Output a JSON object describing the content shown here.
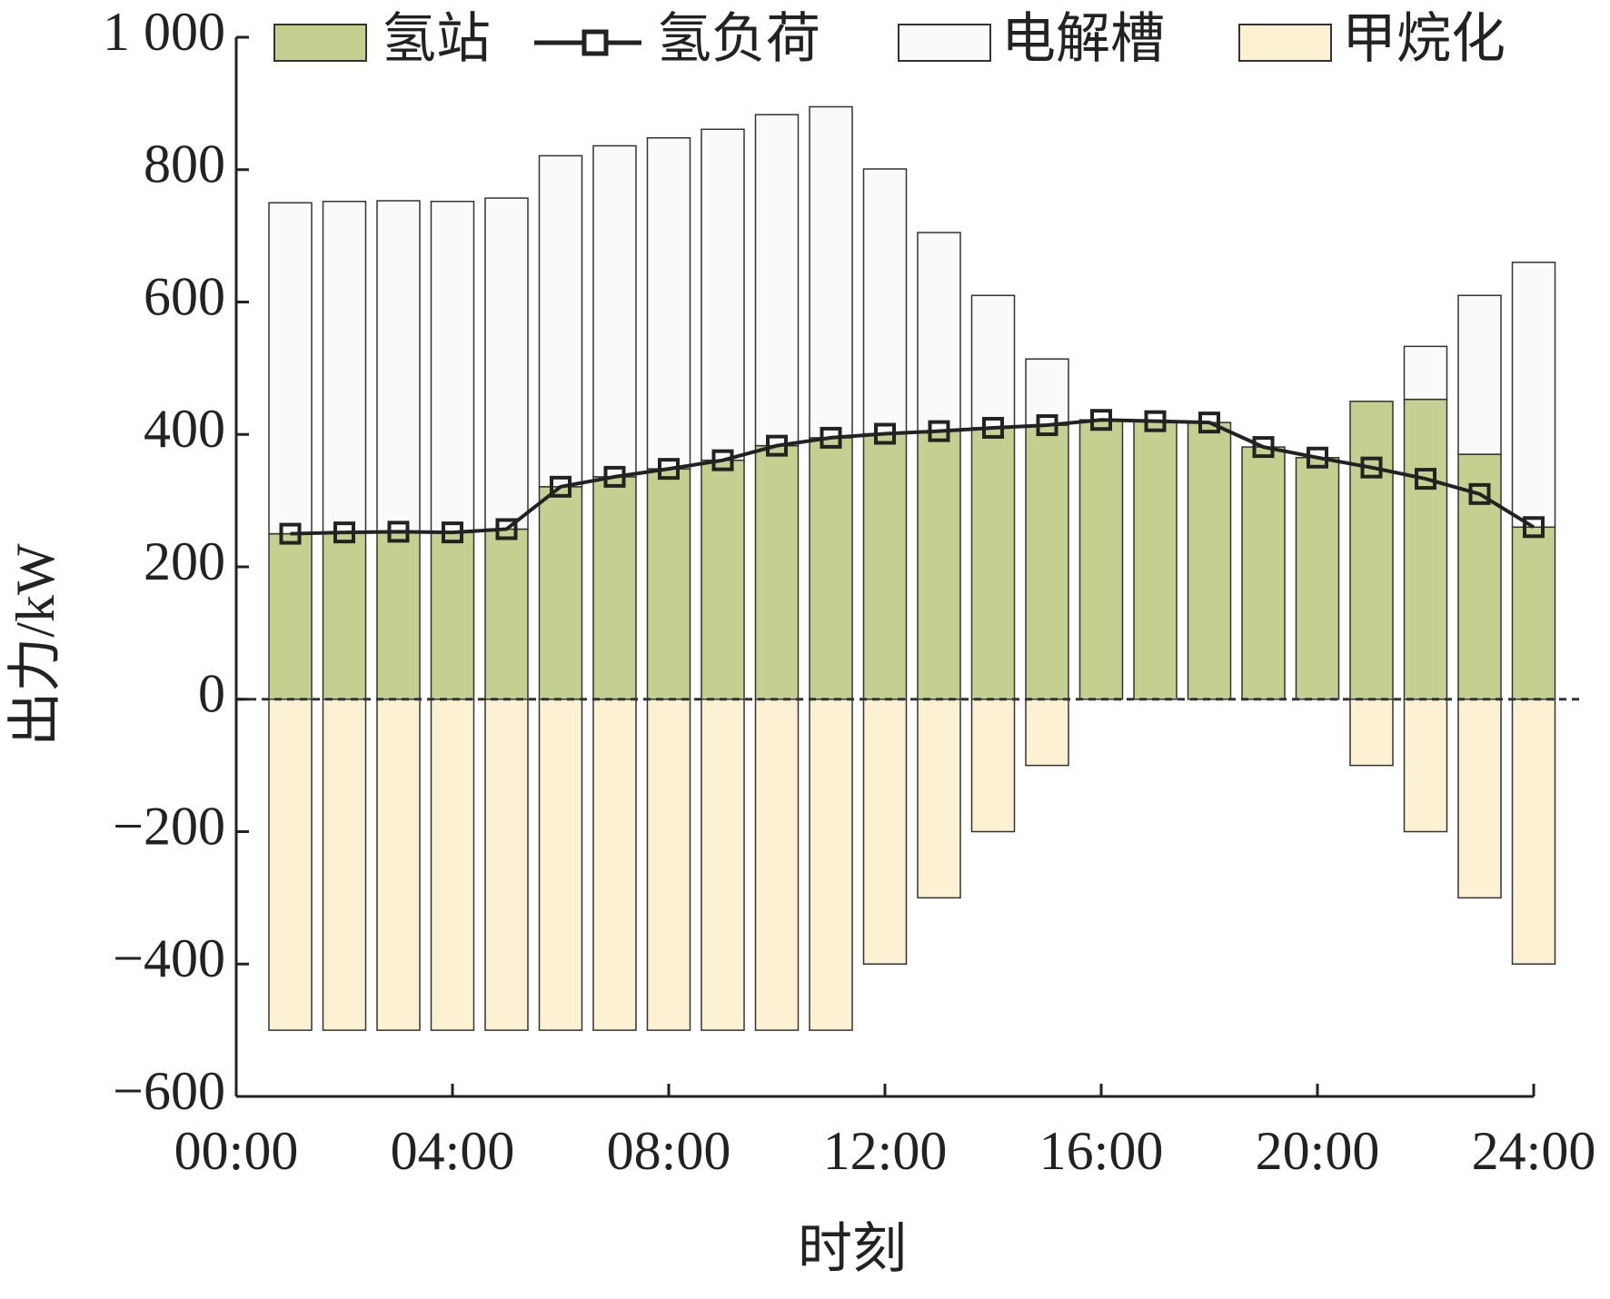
{
  "chart_data": {
    "type": "bar",
    "x_label": "时刻",
    "y_label": "出力/kW",
    "x": [
      1,
      2,
      3,
      4,
      5,
      6,
      7,
      8,
      9,
      10,
      11,
      12,
      13,
      14,
      15,
      16,
      17,
      18,
      19,
      20,
      21,
      22,
      23,
      24
    ],
    "xlim": [
      0,
      24
    ],
    "xticks": [
      {
        "value": 0,
        "label": "00:00"
      },
      {
        "value": 4,
        "label": "04:00"
      },
      {
        "value": 8,
        "label": "08:00"
      },
      {
        "value": 12,
        "label": "12:00"
      },
      {
        "value": 16,
        "label": "16:00"
      },
      {
        "value": 20,
        "label": "20:00"
      },
      {
        "value": 24,
        "label": "24:00"
      }
    ],
    "ylim": [
      -600,
      1000
    ],
    "yticks": [
      {
        "value": -600,
        "label": "−600"
      },
      {
        "value": -400,
        "label": "−400"
      },
      {
        "value": -200,
        "label": "−200"
      },
      0,
      200,
      400,
      600,
      800,
      {
        "value": 1000,
        "label": "1 000"
      }
    ],
    "series": [
      {
        "name": "氢站",
        "kind": "bar",
        "color": "#c3d08f",
        "values": [
          250,
          252,
          253,
          252,
          257,
          321,
          336,
          348,
          361,
          383,
          395,
          401,
          405,
          410,
          414,
          422,
          420,
          418,
          381,
          365,
          450,
          453,
          370,
          260
        ]
      },
      {
        "name": "氢负荷",
        "kind": "line",
        "color": "#222222",
        "values": [
          250,
          252,
          253,
          252,
          257,
          321,
          336,
          348,
          361,
          383,
          395,
          401,
          405,
          410,
          414,
          422,
          420,
          418,
          381,
          365,
          350,
          333,
          310,
          260
        ]
      },
      {
        "name": "电解槽",
        "kind": "bar",
        "color": "#fafafa",
        "values": [
          500,
          500,
          500,
          500,
          500,
          500,
          500,
          500,
          500,
          500,
          500,
          400,
          300,
          200,
          100,
          0,
          0,
          0,
          0,
          0,
          0,
          80,
          240,
          400
        ]
      },
      {
        "name": "甲烷化",
        "kind": "bar",
        "color": "#fdf1d3",
        "values": [
          -500,
          -500,
          -500,
          -500,
          -500,
          -500,
          -500,
          -500,
          -500,
          -500,
          -500,
          -400,
          -300,
          -200,
          -100,
          0,
          0,
          0,
          0,
          0,
          -100,
          -200,
          -300,
          -400
        ]
      }
    ]
  }
}
